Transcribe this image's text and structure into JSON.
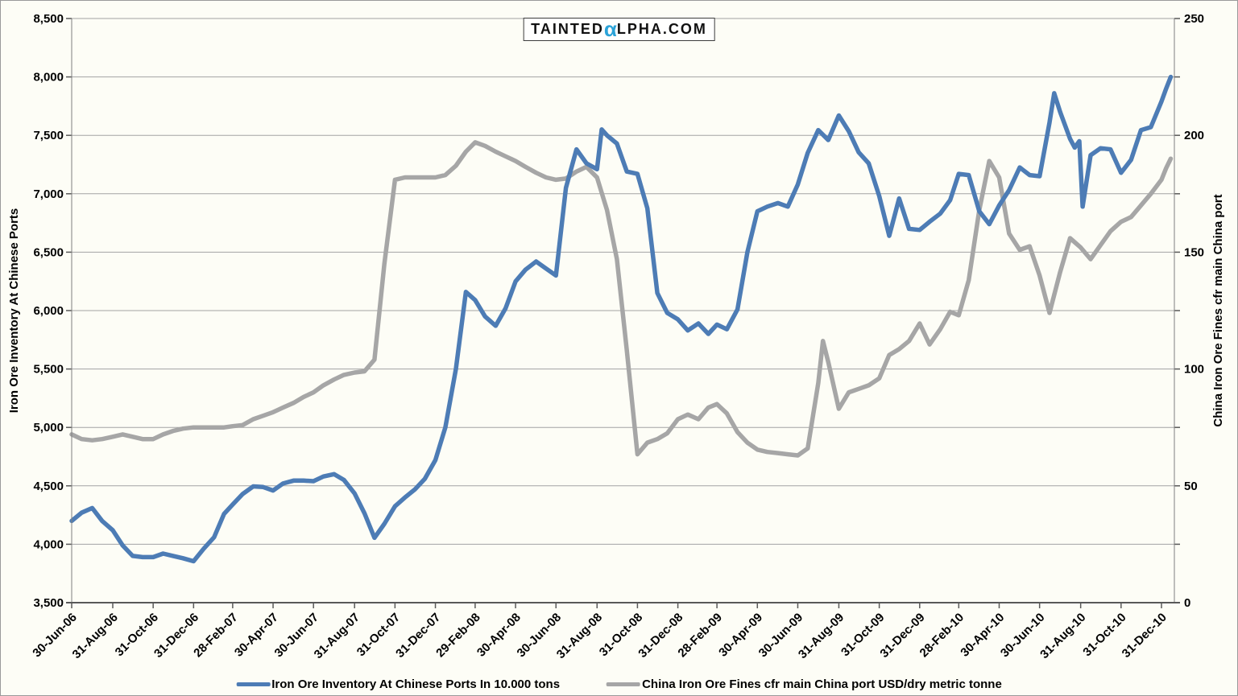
{
  "header": {
    "brand_prefix": "TAINTED",
    "brand_alpha": "α",
    "brand_suffix": "LPHA.COM"
  },
  "colors": {
    "inventory_line": "#4d7cb5",
    "price_line": "#a6a6a6",
    "alpha_blue": "#2ba3d8",
    "gridline": "#a3a3a3",
    "frame": "#808080",
    "axis": "#595959",
    "text": "#000000"
  },
  "left_axis": {
    "title": "Iron Ore Inventory At Chinese Ports",
    "min": 3500,
    "max": 8500,
    "step": 500,
    "ticks": [
      {
        "label": "8,500",
        "value": 8500
      },
      {
        "label": "8,000",
        "value": 8000
      },
      {
        "label": "7,500",
        "value": 7500
      },
      {
        "label": "7,000",
        "value": 7000
      },
      {
        "label": "6,500",
        "value": 6500
      },
      {
        "label": "6,000",
        "value": 6000
      },
      {
        "label": "5,500",
        "value": 5500
      },
      {
        "label": "5,000",
        "value": 5000
      },
      {
        "label": "4,500",
        "value": 4500
      },
      {
        "label": "4,000",
        "value": 4000
      },
      {
        "label": "3,500",
        "value": 3500
      }
    ]
  },
  "right_axis": {
    "title": "China Iron Ore Fines cfr main China port",
    "min": 0,
    "max": 250,
    "step": 50,
    "ticks": [
      {
        "label": "250",
        "value": 250
      },
      {
        "label": "200",
        "value": 200
      },
      {
        "label": "150",
        "value": 150
      },
      {
        "label": "100",
        "value": 100
      },
      {
        "label": "50",
        "value": 50
      },
      {
        "label": "0",
        "value": 0
      }
    ]
  },
  "x_axis": {
    "tick_labels": [
      "30-Jun-06",
      "31-Aug-06",
      "31-Oct-06",
      "31-Dec-06",
      "28-Feb-07",
      "30-Apr-07",
      "30-Jun-07",
      "31-Aug-07",
      "31-Oct-07",
      "31-Dec-07",
      "29-Feb-08",
      "30-Apr-08",
      "30-Jun-08",
      "31-Aug-08",
      "31-Oct-08",
      "31-Dec-08",
      "28-Feb-09",
      "30-Apr-09",
      "30-Jun-09",
      "31-Aug-09",
      "31-Oct-09",
      "31-Dec-09",
      "28-Feb-10",
      "30-Apr-10",
      "30-Jun-10",
      "31-Aug-10",
      "31-Oct-10",
      "31-Dec-10"
    ]
  },
  "legend": [
    {
      "label": "Iron Ore Inventory At Chinese Ports In 10.000 tons",
      "color_key": "inventory_line"
    },
    {
      "label": "China Iron Ore Fines cfr main China port USD/dry metric tonne",
      "color_key": "price_line"
    }
  ],
  "chart_data": {
    "type": "line",
    "title": "",
    "grid": "horizontal",
    "left_ylim": [
      3500,
      8500
    ],
    "right_ylim": [
      0,
      250
    ],
    "x_range": [
      "2006-06-30",
      "2011-01-14"
    ],
    "series": [
      {
        "name": "Iron Ore Inventory At Chinese Ports In 10.000 tons",
        "axis": "left",
        "color_key": "inventory_line",
        "points": [
          [
            "2006-06-30",
            4200
          ],
          [
            "2006-07-15",
            4270
          ],
          [
            "2006-07-31",
            4310
          ],
          [
            "2006-08-15",
            4200
          ],
          [
            "2006-08-31",
            4120
          ],
          [
            "2006-09-15",
            3990
          ],
          [
            "2006-09-30",
            3900
          ],
          [
            "2006-10-15",
            3890
          ],
          [
            "2006-10-31",
            3890
          ],
          [
            "2006-11-15",
            3920
          ],
          [
            "2006-11-30",
            3900
          ],
          [
            "2006-12-15",
            3880
          ],
          [
            "2006-12-31",
            3855
          ],
          [
            "2007-01-15",
            3960
          ],
          [
            "2007-01-31",
            4060
          ],
          [
            "2007-02-15",
            4260
          ],
          [
            "2007-02-28",
            4340
          ],
          [
            "2007-03-15",
            4430
          ],
          [
            "2007-03-31",
            4495
          ],
          [
            "2007-04-15",
            4490
          ],
          [
            "2007-04-30",
            4460
          ],
          [
            "2007-05-15",
            4520
          ],
          [
            "2007-05-31",
            4545
          ],
          [
            "2007-06-15",
            4545
          ],
          [
            "2007-06-30",
            4540
          ],
          [
            "2007-07-15",
            4580
          ],
          [
            "2007-07-31",
            4600
          ],
          [
            "2007-08-15",
            4550
          ],
          [
            "2007-08-31",
            4435
          ],
          [
            "2007-09-15",
            4265
          ],
          [
            "2007-09-30",
            4055
          ],
          [
            "2007-10-15",
            4175
          ],
          [
            "2007-10-31",
            4325
          ],
          [
            "2007-11-15",
            4400
          ],
          [
            "2007-11-30",
            4470
          ],
          [
            "2007-12-15",
            4560
          ],
          [
            "2007-12-31",
            4720
          ],
          [
            "2008-01-15",
            5000
          ],
          [
            "2008-01-31",
            5500
          ],
          [
            "2008-02-15",
            6160
          ],
          [
            "2008-02-29",
            6090
          ],
          [
            "2008-03-15",
            5950
          ],
          [
            "2008-03-31",
            5870
          ],
          [
            "2008-04-15",
            6020
          ],
          [
            "2008-04-30",
            6250
          ],
          [
            "2008-05-15",
            6350
          ],
          [
            "2008-05-31",
            6420
          ],
          [
            "2008-06-15",
            6360
          ],
          [
            "2008-06-30",
            6300
          ],
          [
            "2008-07-15",
            7050
          ],
          [
            "2008-07-31",
            7380
          ],
          [
            "2008-08-15",
            7260
          ],
          [
            "2008-08-31",
            7210
          ],
          [
            "2008-09-07",
            7550
          ],
          [
            "2008-09-15",
            7500
          ],
          [
            "2008-09-30",
            7430
          ],
          [
            "2008-10-15",
            7190
          ],
          [
            "2008-10-31",
            7170
          ],
          [
            "2008-11-15",
            6875
          ],
          [
            "2008-11-30",
            6150
          ],
          [
            "2008-12-15",
            5980
          ],
          [
            "2008-12-31",
            5925
          ],
          [
            "2009-01-15",
            5830
          ],
          [
            "2009-01-31",
            5890
          ],
          [
            "2009-02-15",
            5800
          ],
          [
            "2009-02-28",
            5880
          ],
          [
            "2009-03-15",
            5840
          ],
          [
            "2009-03-31",
            6010
          ],
          [
            "2009-04-15",
            6500
          ],
          [
            "2009-04-30",
            6850
          ],
          [
            "2009-05-15",
            6890
          ],
          [
            "2009-05-31",
            6920
          ],
          [
            "2009-06-15",
            6890
          ],
          [
            "2009-06-30",
            7080
          ],
          [
            "2009-07-15",
            7350
          ],
          [
            "2009-07-31",
            7545
          ],
          [
            "2009-08-15",
            7460
          ],
          [
            "2009-08-31",
            7670
          ],
          [
            "2009-09-15",
            7535
          ],
          [
            "2009-09-30",
            7355
          ],
          [
            "2009-10-15",
            7260
          ],
          [
            "2009-10-31",
            6980
          ],
          [
            "2009-11-15",
            6640
          ],
          [
            "2009-11-30",
            6960
          ],
          [
            "2009-12-15",
            6700
          ],
          [
            "2009-12-31",
            6690
          ],
          [
            "2010-01-15",
            6760
          ],
          [
            "2010-01-31",
            6830
          ],
          [
            "2010-02-15",
            6945
          ],
          [
            "2010-02-28",
            7170
          ],
          [
            "2010-03-15",
            7160
          ],
          [
            "2010-03-31",
            6850
          ],
          [
            "2010-04-15",
            6740
          ],
          [
            "2010-04-30",
            6900
          ],
          [
            "2010-05-15",
            7030
          ],
          [
            "2010-05-31",
            7225
          ],
          [
            "2010-06-15",
            7160
          ],
          [
            "2010-06-30",
            7150
          ],
          [
            "2010-07-15",
            7610
          ],
          [
            "2010-07-22",
            7860
          ],
          [
            "2010-07-31",
            7700
          ],
          [
            "2010-08-15",
            7470
          ],
          [
            "2010-08-22",
            7395
          ],
          [
            "2010-08-29",
            7450
          ],
          [
            "2010-09-03",
            6890
          ],
          [
            "2010-09-15",
            7330
          ],
          [
            "2010-09-30",
            7390
          ],
          [
            "2010-10-15",
            7380
          ],
          [
            "2010-10-31",
            7180
          ],
          [
            "2010-11-15",
            7290
          ],
          [
            "2010-11-30",
            7545
          ],
          [
            "2010-12-15",
            7570
          ],
          [
            "2010-12-31",
            7790
          ],
          [
            "2011-01-07",
            7900
          ],
          [
            "2011-01-14",
            8000
          ]
        ]
      },
      {
        "name": "China Iron Ore Fines cfr main China port USD/dry metric tonne",
        "axis": "right",
        "color_key": "price_line",
        "points": [
          [
            "2006-06-30",
            72
          ],
          [
            "2006-07-15",
            70
          ],
          [
            "2006-07-31",
            69.5
          ],
          [
            "2006-08-15",
            70
          ],
          [
            "2006-08-31",
            71
          ],
          [
            "2006-09-15",
            72
          ],
          [
            "2006-09-30",
            71
          ],
          [
            "2006-10-15",
            70
          ],
          [
            "2006-10-31",
            70
          ],
          [
            "2006-11-15",
            72
          ],
          [
            "2006-11-30",
            73.5
          ],
          [
            "2006-12-15",
            74.5
          ],
          [
            "2006-12-31",
            75
          ],
          [
            "2007-01-15",
            75
          ],
          [
            "2007-01-31",
            75
          ],
          [
            "2007-02-15",
            75
          ],
          [
            "2007-02-28",
            75.5
          ],
          [
            "2007-03-15",
            76
          ],
          [
            "2007-03-31",
            78.5
          ],
          [
            "2007-04-15",
            80
          ],
          [
            "2007-04-30",
            81.5
          ],
          [
            "2007-05-15",
            83.5
          ],
          [
            "2007-05-31",
            85.5
          ],
          [
            "2007-06-15",
            88
          ],
          [
            "2007-06-30",
            90
          ],
          [
            "2007-07-15",
            93
          ],
          [
            "2007-07-31",
            95.5
          ],
          [
            "2007-08-15",
            97.5
          ],
          [
            "2007-08-31",
            98.5
          ],
          [
            "2007-09-15",
            99
          ],
          [
            "2007-09-30",
            104
          ],
          [
            "2007-10-15",
            145
          ],
          [
            "2007-10-31",
            181
          ],
          [
            "2007-11-15",
            182
          ],
          [
            "2007-11-30",
            182
          ],
          [
            "2007-12-15",
            182
          ],
          [
            "2007-12-31",
            182
          ],
          [
            "2008-01-15",
            183
          ],
          [
            "2008-01-31",
            187
          ],
          [
            "2008-02-15",
            193
          ],
          [
            "2008-02-29",
            197
          ],
          [
            "2008-03-15",
            195.5
          ],
          [
            "2008-03-31",
            193
          ],
          [
            "2008-04-15",
            191
          ],
          [
            "2008-04-30",
            189
          ],
          [
            "2008-05-15",
            186.5
          ],
          [
            "2008-05-31",
            184
          ],
          [
            "2008-06-15",
            182
          ],
          [
            "2008-06-30",
            181
          ],
          [
            "2008-07-15",
            181.5
          ],
          [
            "2008-07-31",
            184.5
          ],
          [
            "2008-08-15",
            186.5
          ],
          [
            "2008-08-31",
            182
          ],
          [
            "2008-09-15",
            168
          ],
          [
            "2008-09-30",
            147
          ],
          [
            "2008-10-15",
            108
          ],
          [
            "2008-10-31",
            63.5
          ],
          [
            "2008-11-15",
            68.5
          ],
          [
            "2008-11-30",
            70
          ],
          [
            "2008-12-15",
            72.5
          ],
          [
            "2008-12-31",
            78.5
          ],
          [
            "2009-01-15",
            80.5
          ],
          [
            "2009-01-31",
            78.5
          ],
          [
            "2009-02-15",
            83.5
          ],
          [
            "2009-02-28",
            85
          ],
          [
            "2009-03-15",
            81
          ],
          [
            "2009-03-31",
            73
          ],
          [
            "2009-04-15",
            68.5
          ],
          [
            "2009-04-30",
            65.5
          ],
          [
            "2009-05-15",
            64.5
          ],
          [
            "2009-05-31",
            64
          ],
          [
            "2009-06-15",
            63.5
          ],
          [
            "2009-06-30",
            63
          ],
          [
            "2009-07-15",
            66
          ],
          [
            "2009-07-31",
            94
          ],
          [
            "2009-08-07",
            112
          ],
          [
            "2009-08-15",
            103
          ],
          [
            "2009-08-31",
            83
          ],
          [
            "2009-09-15",
            90
          ],
          [
            "2009-09-30",
            91.5
          ],
          [
            "2009-10-15",
            93
          ],
          [
            "2009-10-31",
            96
          ],
          [
            "2009-11-15",
            106
          ],
          [
            "2009-11-30",
            108.5
          ],
          [
            "2009-12-15",
            112
          ],
          [
            "2009-12-31",
            119.5
          ],
          [
            "2010-01-15",
            110.5
          ],
          [
            "2010-01-31",
            117
          ],
          [
            "2010-02-15",
            124.5
          ],
          [
            "2010-02-28",
            123
          ],
          [
            "2010-03-15",
            138
          ],
          [
            "2010-03-31",
            168
          ],
          [
            "2010-04-15",
            189
          ],
          [
            "2010-04-30",
            182
          ],
          [
            "2010-05-15",
            158
          ],
          [
            "2010-05-31",
            151
          ],
          [
            "2010-06-15",
            152.5
          ],
          [
            "2010-06-30",
            140
          ],
          [
            "2010-07-15",
            124
          ],
          [
            "2010-07-31",
            141.5
          ],
          [
            "2010-08-15",
            156
          ],
          [
            "2010-08-31",
            152
          ],
          [
            "2010-09-15",
            147
          ],
          [
            "2010-09-30",
            153
          ],
          [
            "2010-10-15",
            159
          ],
          [
            "2010-10-31",
            163
          ],
          [
            "2010-11-15",
            165
          ],
          [
            "2010-11-30",
            170
          ],
          [
            "2010-12-15",
            175
          ],
          [
            "2010-12-31",
            181
          ],
          [
            "2011-01-07",
            186
          ],
          [
            "2011-01-14",
            190
          ]
        ]
      }
    ]
  }
}
